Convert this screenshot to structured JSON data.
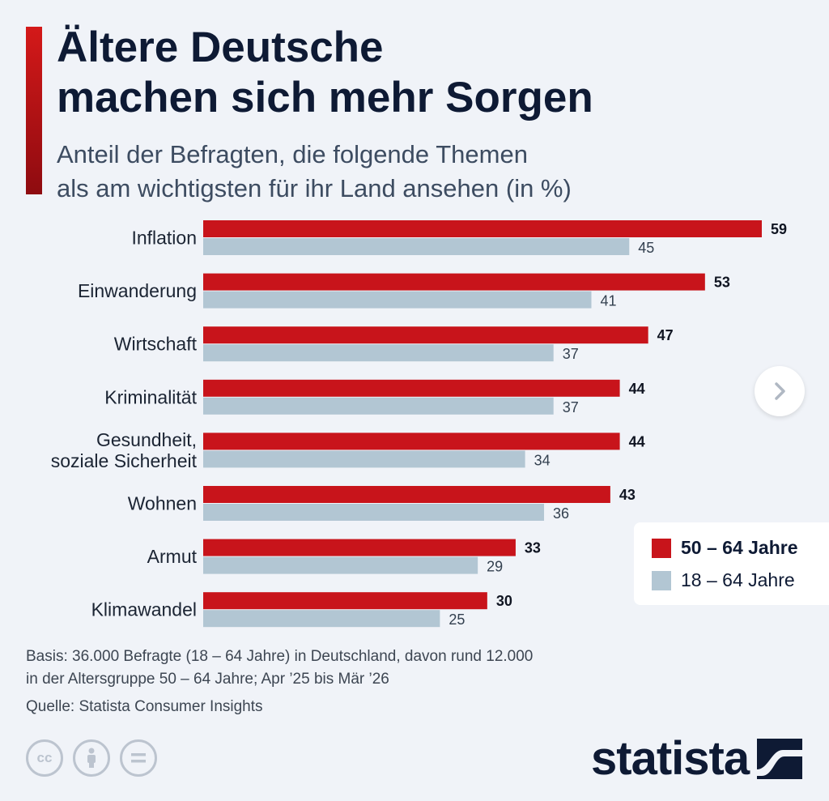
{
  "header": {
    "title_line1": "Ältere Deutsche",
    "title_line2": "machen sich mehr Sorgen",
    "subtitle_line1": "Anteil der Befragten, die folgende Themen",
    "subtitle_line2": "als am wichtigsten für ihr Land ansehen (in %)"
  },
  "colors": {
    "accent": "#c8141b",
    "series_a": "#c8141b",
    "series_b": "#b2c6d3",
    "title": "#0e1a34"
  },
  "chart_data": {
    "type": "bar",
    "orientation": "horizontal",
    "categories": [
      [
        "Inflation"
      ],
      [
        "Einwanderung"
      ],
      [
        "Wirtschaft"
      ],
      [
        "Kriminalität"
      ],
      [
        "Gesundheit,",
        "soziale Sicherheit"
      ],
      [
        "Wohnen"
      ],
      [
        "Armut"
      ],
      [
        "Klimawandel"
      ]
    ],
    "series": [
      {
        "name": "50 – 64 Jahre",
        "values": [
          59,
          53,
          47,
          44,
          44,
          43,
          33,
          30
        ]
      },
      {
        "name": "18 – 64 Jahre",
        "values": [
          45,
          41,
          37,
          37,
          34,
          36,
          29,
          25
        ]
      }
    ],
    "xlim": [
      0,
      60
    ],
    "grid": false,
    "legend_position": "right"
  },
  "legend": {
    "items": [
      "50 – 64 Jahre",
      "18 – 64 Jahre"
    ]
  },
  "notes": {
    "basis_line1": "Basis: 36.000 Befragte (18 – 64 Jahre) in Deutschland, davon rund 12.000",
    "basis_line2": "in der Altersgruppe 50 – 64 Jahre; Apr ’25 bis Mär ’26",
    "source": "Quelle: Statista Consumer Insights"
  },
  "license_icons": [
    {
      "name": "cc-icon",
      "glyph": "cc"
    },
    {
      "name": "attribution-icon",
      "glyph": "person"
    },
    {
      "name": "no-derivatives-icon",
      "glyph": "equals"
    }
  ],
  "brand": {
    "logo_text": "statista"
  },
  "nav": {
    "next_icon": "chevron-right-icon"
  }
}
